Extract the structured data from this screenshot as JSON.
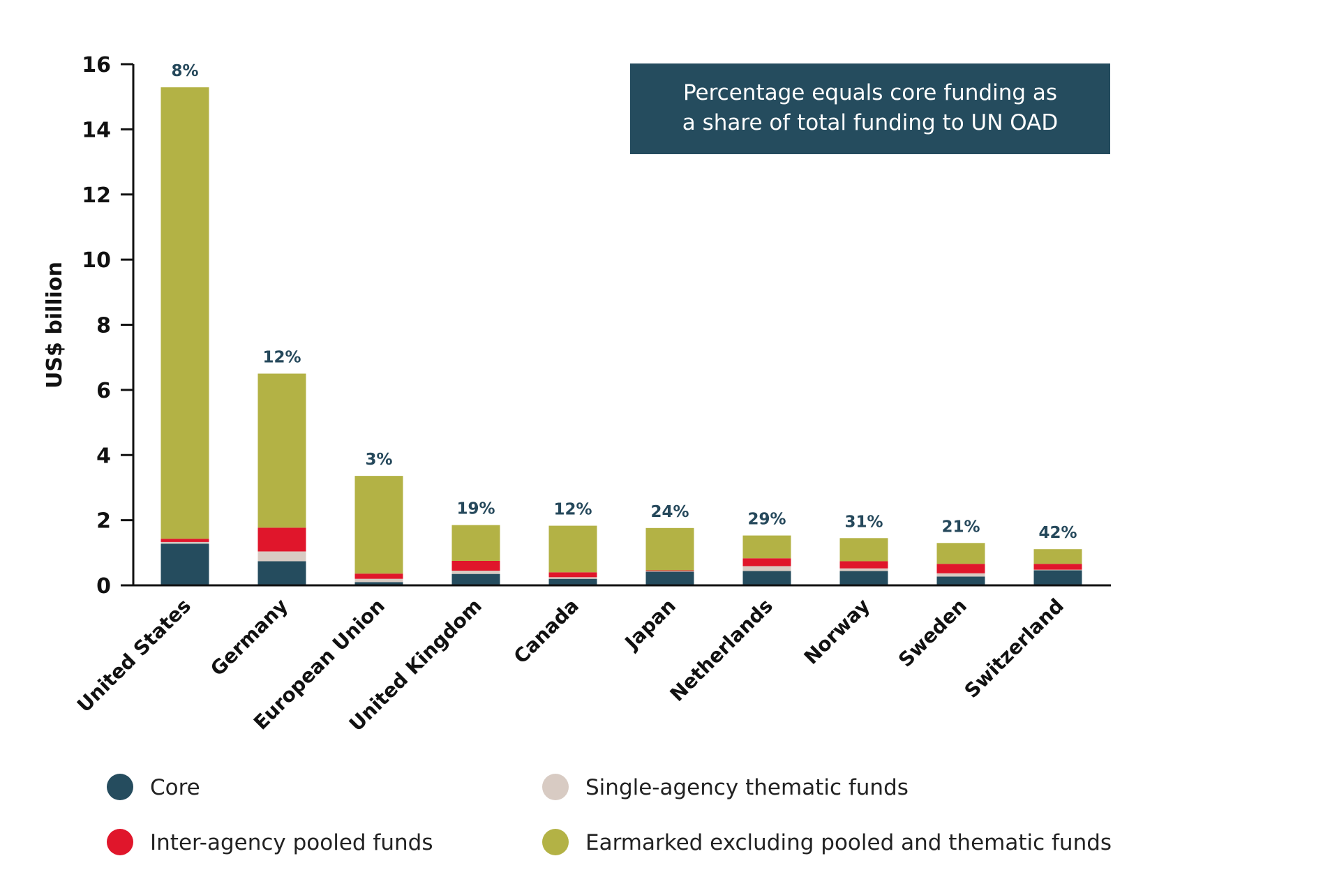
{
  "chart_data": {
    "type": "bar",
    "stacked": true,
    "ylabel": "US$ billion",
    "ylim": [
      0,
      16
    ],
    "yticks": [
      0,
      2,
      4,
      6,
      8,
      10,
      12,
      14,
      16
    ],
    "grid": false,
    "categories": [
      "United States",
      "Germany",
      "European Union",
      "United Kingdom",
      "Canada",
      "Japan",
      "Netherlands",
      "Norway",
      "Sweden",
      "Switzerland"
    ],
    "series": [
      {
        "name": "Core",
        "color": "#254c5e",
        "values": [
          1.28,
          0.74,
          0.1,
          0.35,
          0.2,
          0.42,
          0.44,
          0.44,
          0.27,
          0.46
        ]
      },
      {
        "name": "Single-agency thematic funds",
        "color": "#d8cbc3",
        "values": [
          0.05,
          0.3,
          0.1,
          0.1,
          0.05,
          0.02,
          0.15,
          0.08,
          0.1,
          0.02
        ]
      },
      {
        "name": "Inter-agency pooled funds",
        "color": "#e0162b",
        "values": [
          0.1,
          0.73,
          0.16,
          0.3,
          0.15,
          0.02,
          0.24,
          0.22,
          0.29,
          0.18
        ]
      },
      {
        "name": "Earmarked excluding pooled and thematic funds",
        "color": "#b3b245",
        "values": [
          13.86,
          4.73,
          3.0,
          1.1,
          1.43,
          1.3,
          0.7,
          0.71,
          0.64,
          0.45
        ]
      }
    ],
    "annotations": [
      "8%",
      "12%",
      "3%",
      "19%",
      "12%",
      "24%",
      "29%",
      "31%",
      "21%",
      "42%"
    ],
    "note": [
      "Percentage equals core funding as",
      "a share of total funding to UN OAD"
    ],
    "legend": {
      "placement": "bottom",
      "order": [
        "Core",
        "Single-agency thematic funds",
        "Inter-agency pooled funds",
        "Earmarked excluding pooled and thematic funds"
      ]
    },
    "colors": {
      "axis": "#111111",
      "note_background": "#254c5e",
      "percent_label": "#25485b"
    }
  }
}
